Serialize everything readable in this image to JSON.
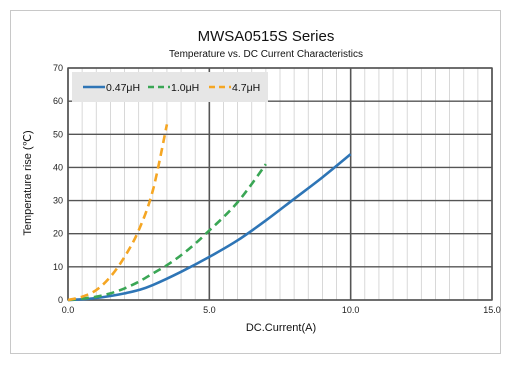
{
  "chart_data": {
    "type": "line",
    "title": "MWSA0515S Series",
    "subtitle": "Temperature vs. DC Current Characteristics",
    "xlabel": "DC.Current(A)",
    "ylabel": "Temperature rise (℃)",
    "xlim": [
      0,
      15
    ],
    "ylim": [
      0,
      70
    ],
    "xticks": [
      0,
      5,
      10,
      15
    ],
    "xtick_labels": [
      "0.0",
      "5.0",
      "10.0",
      "15.0"
    ],
    "yticks": [
      0,
      10,
      20,
      30,
      40,
      50,
      60,
      70
    ],
    "ytick_labels": [
      "0",
      "10",
      "20",
      "30",
      "40",
      "50",
      "60",
      "70"
    ],
    "grid": true,
    "legend_position": "top-left",
    "series": [
      {
        "name": "0.47μH",
        "color": "#2e75b6",
        "dash": "solid",
        "x": [
          0,
          0.5,
          1,
          1.5,
          2,
          2.5,
          3,
          4,
          5,
          6,
          7,
          8,
          9,
          10
        ],
        "y": [
          0,
          0.2,
          0.6,
          1.2,
          2,
          3,
          4.5,
          8.5,
          13,
          18,
          24,
          30.5,
          37,
          44
        ]
      },
      {
        "name": "1.0μH",
        "color": "#3aa655",
        "dash": "dashed",
        "x": [
          0,
          0.5,
          1,
          1.5,
          2,
          2.5,
          3,
          3.5,
          4,
          4.5,
          5,
          5.5,
          6,
          6.5,
          7
        ],
        "y": [
          0,
          0.4,
          1,
          2,
          3.5,
          5.5,
          8,
          10.5,
          13.5,
          17,
          21,
          25,
          29.5,
          35,
          41
        ]
      },
      {
        "name": "4.7μH",
        "color": "#f5a623",
        "dash": "dashed",
        "x": [
          0,
          0.5,
          1,
          1.5,
          2,
          2.5,
          3,
          3.5
        ],
        "y": [
          0,
          1,
          3,
          7,
          13,
          21,
          33,
          53
        ]
      }
    ]
  }
}
